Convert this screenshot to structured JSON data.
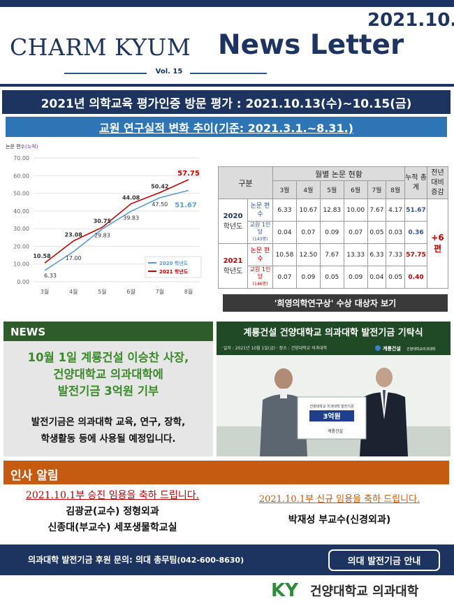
{
  "header": {
    "issue_date": "2021.10.",
    "brand_serif": "CHARM KYUM",
    "brand_sans": "News Letter",
    "volume": "Vol. 15"
  },
  "event_banner": "2021년 의학교육 평가인증 방문 평가 : 2021.10.13(수)~10.15(금)",
  "section_banner": "교원 연구실적 변화 추이(기준: 2021.3.1.~8.31.)",
  "chart_data": {
    "type": "line",
    "ylabel_main": "논문 편수",
    "ylabel_note": "(누적)",
    "categories": [
      "3월",
      "4월",
      "5월",
      "6월",
      "7월",
      "8월"
    ],
    "ylim": [
      0,
      70
    ],
    "yticks": [
      "0.00",
      "10.00",
      "20.00",
      "30.00",
      "40.00",
      "50.00",
      "60.00",
      "70.00"
    ],
    "grid": true,
    "legend_position": "bottom-right",
    "series": [
      {
        "name": "2020 학년도",
        "color": "#5b9bd5",
        "values": [
          6.33,
          17.0,
          29.83,
          39.83,
          47.5,
          51.67
        ],
        "labels": [
          "6.33",
          "17.00",
          "29.83",
          "39.83",
          "47.50",
          "51.67"
        ]
      },
      {
        "name": "2021 학년도",
        "color": "#c00000",
        "values": [
          10.58,
          23.08,
          30.75,
          44.08,
          50.42,
          57.75
        ],
        "labels": [
          "10.58",
          "23.08",
          "30.75",
          "44.08",
          "50.42",
          "57.75"
        ]
      }
    ]
  },
  "table": {
    "h_gubun": "구분",
    "h_monthly": "월별 논문 현황",
    "h_cumulative": "누적 총계",
    "h_yoy": "전년 대비 증감",
    "months": [
      "3월",
      "4월",
      "5월",
      "6월",
      "7월",
      "8월"
    ],
    "y2020": {
      "year": "2020",
      "year_suffix": "학년도",
      "row1_label": "논문 편수",
      "row1": [
        "6.33",
        "10.67",
        "12.83",
        "10.00",
        "7.67",
        "4.17"
      ],
      "row1_total": "51.67",
      "row2_label": "교원 1인당",
      "row2_note": "(143명)",
      "row2": [
        "0.04",
        "0.07",
        "0.09",
        "0.07",
        "0.05",
        "0.03"
      ],
      "row2_total": "0.36"
    },
    "y2021": {
      "year": "2021",
      "year_suffix": "학년도",
      "row1_label": "논문 편수",
      "row1": [
        "10.58",
        "12.50",
        "7.67",
        "13.33",
        "6.33",
        "7.33"
      ],
      "row1_total": "57.75",
      "row2_label": "교원 1인당",
      "row2_note": "(146명)",
      "row2": [
        "0.07",
        "0.09",
        "0.05",
        "0.09",
        "0.04",
        "0.05"
      ],
      "row2_total": "0.40"
    },
    "yoy_change": "+6편"
  },
  "award_button": "'희영의학연구상' 수상 대상자 보기",
  "news": {
    "label": "NEWS",
    "headline_1": "10월 1일 계룡건설 이승찬 사장,",
    "headline_2": "건양대학교 의과대학에",
    "headline_3": "발전기금 3억원 기부",
    "body_1": "발전기금은 의과대학 교육, 연구, 장학,",
    "body_2": "학생활동 등에 사용될 예정입니다.",
    "photo": {
      "banner_title": "계룡건설 건양대학교 의과대학 발전기금 기탁식",
      "banner_sub": "· 일자 : 2021년 10월 1일(금)   · 장소 : 건양대학교 의과대학",
      "logo_1": "계룡건설",
      "logo_2": "건양대학교의과대학",
      "board_line": "건양대학교 의과대학 발전기금",
      "board_amount": "3억원",
      "board_company": "계룡건설"
    }
  },
  "personnel": {
    "header": "인사 알림",
    "promo_title": "2021.10.1부 승진 임용을 축하 드립니다.",
    "promo_1": "김광균(교수) 정형외과",
    "promo_2": "신종대(부교수) 세포생물학교실",
    "newhire_title": "2021.10.1부 신규 임용을 축하 드립니다.",
    "newhire_1": "박재성 부교수(신경외과)"
  },
  "footer": {
    "contact_text": "의과대학 발전기금 후원 문의: 의대 총무팀",
    "contact_phone": "(042-600-8630)",
    "fund_button": "의대 발전기금 안내",
    "logo_mark": "KY",
    "university_name": "건양대학교 의과대학"
  },
  "colors": {
    "navy": "#1e3460",
    "blue": "#2e75b6",
    "news_green": "#2e5d2b",
    "personnel_orange": "#c55a11",
    "accent_red": "#c00000"
  }
}
